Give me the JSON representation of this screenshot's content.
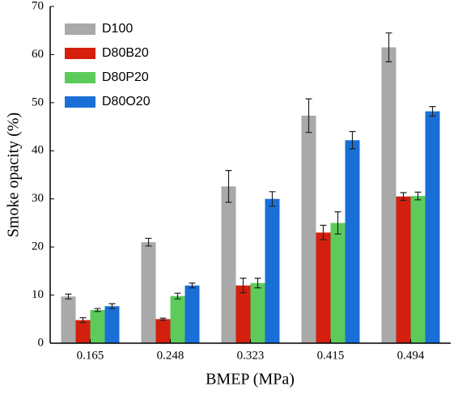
{
  "chart_data": {
    "type": "bar",
    "x_label": "BMEP (MPa)",
    "y_label": "Smoke opacity (%)",
    "categories": [
      "0.165",
      "0.248",
      "0.323",
      "0.415",
      "0.494"
    ],
    "series": [
      {
        "name": "D100",
        "color": "#a9a9a9",
        "values": [
          9.7,
          21,
          32.6,
          47.3,
          61.5
        ],
        "errors": [
          0.5,
          0.8,
          3.3,
          3.5,
          3
        ]
      },
      {
        "name": "D80B20",
        "color": "#d41f0f",
        "values": [
          4.8,
          5,
          12,
          23,
          30.5
        ],
        "errors": [
          0.5,
          0.2,
          1.5,
          1.5,
          0.8
        ]
      },
      {
        "name": "D80P20",
        "color": "#5ccb5c",
        "values": [
          6.9,
          9.8,
          12.5,
          25,
          30.6
        ],
        "errors": [
          0.3,
          0.6,
          1,
          2.3,
          0.8
        ]
      },
      {
        "name": "D80O20",
        "color": "#1a6fd6",
        "values": [
          7.7,
          12,
          30,
          42.2,
          48.2
        ],
        "errors": [
          0.5,
          0.5,
          1.5,
          1.8,
          1
        ]
      }
    ],
    "ylim": [
      0,
      70
    ],
    "yticks": [
      0,
      10,
      20,
      30,
      40,
      50,
      60,
      70
    ],
    "legend": "upper left"
  }
}
